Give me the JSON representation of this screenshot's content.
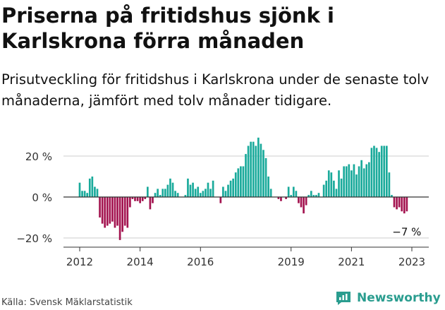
{
  "title": "Priserna på fritidshus sjönk i Karlskrona förra månaden",
  "subtitle": "Prisutveckling för fritidshus i Karlskrona under de senaste tolv månaderna, jämfört med tolv månader tidigare.",
  "source": "Källa: Svensk Mäklarstatistik",
  "brand": {
    "name": "Newsworthy",
    "logo_icon": "newsworthy-logo-icon"
  },
  "colors": {
    "positive": "#1aaa9b",
    "negative": "#a3134f",
    "axis": "#333333",
    "grid": "#cccccc"
  },
  "chart_data": {
    "type": "bar",
    "x_start": "2012-01",
    "x_step": "month",
    "x_ticks": [
      "2012",
      "2014",
      "2016",
      "2019",
      "2021",
      "2023"
    ],
    "y_ticks": [
      "20 %",
      "0 %",
      "−20 %"
    ],
    "y_tick_values": [
      20,
      0,
      -20
    ],
    "ylim": [
      -22,
      31
    ],
    "grid": true,
    "last_value_label": "−7 %",
    "values": [
      7,
      3,
      3,
      2,
      9,
      10,
      5,
      4,
      -10,
      -13,
      -15,
      -14,
      -13,
      -12,
      -15,
      -14,
      -21,
      -17,
      -14,
      -15,
      -5,
      -1,
      -2,
      -2,
      -3,
      -2,
      -1,
      5,
      -6,
      -3,
      2,
      4,
      1,
      4,
      4,
      6,
      9,
      7,
      3,
      2,
      0,
      0,
      1,
      9,
      6,
      7,
      4,
      5,
      2,
      3,
      4,
      7,
      4,
      8,
      0,
      0,
      -3,
      5,
      3,
      6,
      8,
      9,
      12,
      14,
      15,
      15,
      21,
      25,
      27,
      27,
      25,
      29,
      26,
      23,
      19,
      10,
      4,
      0,
      0,
      -1,
      -2,
      0,
      -1,
      5,
      1,
      5,
      3,
      -3,
      -5,
      -8,
      -4,
      1,
      3,
      1,
      1,
      2,
      0,
      6,
      8,
      13,
      12,
      8,
      4,
      13,
      9,
      15,
      15,
      16,
      13,
      16,
      11,
      15,
      18,
      14,
      16,
      17,
      24,
      25,
      24,
      22,
      25,
      25,
      25,
      12,
      1,
      -5,
      -6,
      -5,
      -7,
      -8,
      -7
    ]
  }
}
